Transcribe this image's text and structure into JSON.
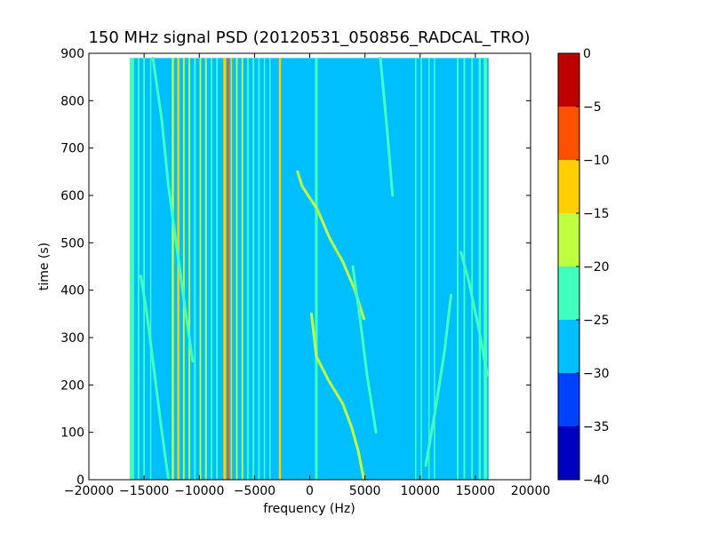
{
  "chart_data": {
    "type": "heatmap",
    "title": "150 MHz signal PSD (20120531_050856_RADCAL_TRO)",
    "xlabel": "frequency (Hz)",
    "ylabel": "time (s)",
    "xlim": [
      -20000,
      20000
    ],
    "ylim": [
      0,
      900
    ],
    "xticks": [
      -20000,
      -15000,
      -10000,
      -5000,
      0,
      5000,
      10000,
      15000,
      20000
    ],
    "xtick_labels": [
      "−20000",
      "−15000",
      "−10000",
      "−5000",
      "0",
      "5000",
      "10000",
      "15000",
      "20000"
    ],
    "yticks": [
      0,
      100,
      200,
      300,
      400,
      500,
      600,
      700,
      800,
      900
    ],
    "ytick_labels": [
      "0",
      "100",
      "200",
      "300",
      "400",
      "500",
      "600",
      "700",
      "800",
      "900"
    ],
    "data_extent": {
      "x": [
        -16200,
        16200
      ],
      "y": [
        0,
        890
      ]
    },
    "background_level": -27.5,
    "colorbar": {
      "levels": [
        -40,
        -35,
        -30,
        -25,
        -20,
        -15,
        -10,
        -5,
        0
      ],
      "tick_labels": [
        "−40",
        "−35",
        "−30",
        "−25",
        "−20",
        "−15",
        "−10",
        "−5",
        "0"
      ],
      "colors": [
        "#0000bf",
        "#0040ff",
        "#00bfff",
        "#40ffbf",
        "#bfff40",
        "#ffcf00",
        "#ff5000",
        "#bf0000"
      ]
    },
    "vertical_lines": [
      {
        "x": -16100,
        "width": 400,
        "level": -22.5
      },
      {
        "x": -15500,
        "width": 150,
        "level": -22.5
      },
      {
        "x": -15000,
        "width": 150,
        "level": -22.5
      },
      {
        "x": -14400,
        "width": 120,
        "level": -22.5
      },
      {
        "x": -12400,
        "width": 200,
        "level": -17.5
      },
      {
        "x": -11900,
        "width": 200,
        "level": -12.5
      },
      {
        "x": -11400,
        "width": 150,
        "level": -17.5
      },
      {
        "x": -10900,
        "width": 150,
        "level": -17.5
      },
      {
        "x": -10400,
        "width": 150,
        "level": -22.5
      },
      {
        "x": -9900,
        "width": 150,
        "level": -17.5
      },
      {
        "x": -9400,
        "width": 150,
        "level": -17.5
      },
      {
        "x": -8900,
        "width": 150,
        "level": -22.5
      },
      {
        "x": -8400,
        "width": 150,
        "level": -22.5
      },
      {
        "x": -7700,
        "width": 250,
        "level": -12.5
      },
      {
        "x": -7400,
        "width": 150,
        "level": -7.5
      },
      {
        "x": -7100,
        "width": 150,
        "level": -12.5
      },
      {
        "x": -6600,
        "width": 150,
        "level": -17.5
      },
      {
        "x": -6100,
        "width": 150,
        "level": -17.5
      },
      {
        "x": -5600,
        "width": 150,
        "level": -22.5
      },
      {
        "x": -5100,
        "width": 150,
        "level": -22.5
      },
      {
        "x": -4600,
        "width": 150,
        "level": -22.5
      },
      {
        "x": -4100,
        "width": 120,
        "level": -22.5
      },
      {
        "x": -3600,
        "width": 120,
        "level": -22.5
      },
      {
        "x": -2700,
        "width": 200,
        "level": -12.5
      },
      {
        "x": 600,
        "width": 250,
        "level": -22.5
      },
      {
        "x": 9600,
        "width": 120,
        "level": -22.5
      },
      {
        "x": 10100,
        "width": 120,
        "level": -22.5
      },
      {
        "x": 10800,
        "width": 120,
        "level": -22.5
      },
      {
        "x": 11300,
        "width": 120,
        "level": -22.5
      },
      {
        "x": 13400,
        "width": 150,
        "level": -22.5
      },
      {
        "x": 14000,
        "width": 150,
        "level": -22.5
      },
      {
        "x": 14700,
        "width": 150,
        "level": -22.5
      },
      {
        "x": 15400,
        "width": 200,
        "level": -22.5
      },
      {
        "x": 15900,
        "width": 300,
        "level": -22.5
      }
    ],
    "traces": [
      {
        "level": -17.5,
        "points": [
          [
            4900,
            0
          ],
          [
            4400,
            60
          ],
          [
            3800,
            110
          ],
          [
            3000,
            160
          ],
          [
            1700,
            210
          ],
          [
            600,
            260
          ],
          [
            150,
            350
          ]
        ]
      },
      {
        "level": -17.5,
        "points": [
          [
            4900,
            340
          ],
          [
            4100,
            400
          ],
          [
            3000,
            460
          ],
          [
            1800,
            510
          ],
          [
            700,
            570
          ],
          [
            -700,
            620
          ],
          [
            -1100,
            650
          ]
        ]
      },
      {
        "level": -22.5,
        "points": [
          [
            6000,
            100
          ],
          [
            5200,
            220
          ],
          [
            4500,
            350
          ],
          [
            3900,
            450
          ]
        ]
      },
      {
        "level": -22.5,
        "points": [
          [
            -15300,
            430
          ],
          [
            -14800,
            360
          ],
          [
            -14200,
            250
          ],
          [
            -13500,
            120
          ],
          [
            -12800,
            0
          ]
        ]
      },
      {
        "level": -22.5,
        "points": [
          [
            -14200,
            890
          ],
          [
            -13400,
            760
          ],
          [
            -12800,
            620
          ],
          [
            -12100,
            500
          ],
          [
            -11400,
            380
          ],
          [
            -10600,
            250
          ]
        ]
      },
      {
        "level": -22.5,
        "points": [
          [
            16100,
            220
          ],
          [
            15300,
            320
          ],
          [
            14400,
            420
          ],
          [
            13700,
            480
          ]
        ]
      },
      {
        "level": -22.5,
        "points": [
          [
            12800,
            390
          ],
          [
            12200,
            270
          ],
          [
            11400,
            150
          ],
          [
            10500,
            30
          ]
        ]
      },
      {
        "level": -22.5,
        "points": [
          [
            7500,
            600
          ],
          [
            7000,
            740
          ],
          [
            6400,
            890
          ]
        ]
      }
    ]
  }
}
